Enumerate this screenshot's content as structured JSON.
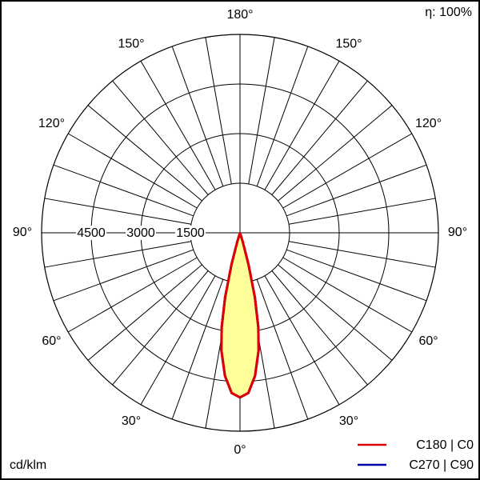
{
  "chart_data": {
    "type": "polar",
    "efficiency": "η: 100%",
    "unit": "cd/klm",
    "x": [
      0,
      3,
      6,
      9,
      11,
      13,
      15,
      17,
      20
    ],
    "series": [
      {
        "name": "C180 | C0",
        "color": "#e00000",
        "values": [
          4980,
          4850,
          4350,
          3600,
          2900,
          2000,
          1000,
          300,
          0
        ]
      },
      {
        "name": "C270 | C90",
        "color": "#0000aa",
        "values": [
          4980,
          4850,
          4350,
          3600,
          2900,
          2000,
          1000,
          300,
          0
        ]
      }
    ],
    "fill": "#ffff99",
    "rlim": [
      0,
      6000
    ],
    "rticks": [
      1500,
      3000,
      4500
    ],
    "angleticks": [
      {
        "value": 0,
        "label": "0°"
      },
      {
        "value": 30,
        "label": "30°"
      },
      {
        "value": 60,
        "label": "60°"
      },
      {
        "value": 90,
        "label": "90°"
      },
      {
        "value": 120,
        "label": "120°"
      },
      {
        "value": 150,
        "label": "150°"
      },
      {
        "value": 180,
        "label": "180°"
      }
    ]
  }
}
